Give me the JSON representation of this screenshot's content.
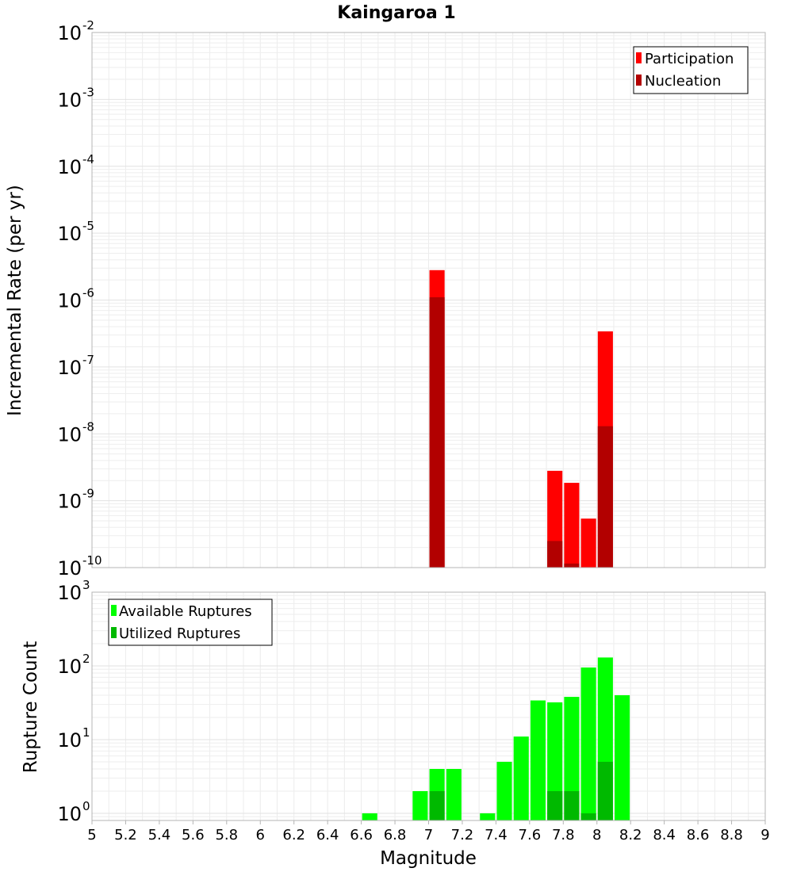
{
  "chart_data": [
    {
      "type": "bar",
      "title": "Kaingaroa 1",
      "xlabel": "",
      "ylabel": "Incremental Rate (per yr)",
      "xlim": [
        5,
        9
      ],
      "ylim": [
        1e-10,
        0.01
      ],
      "yscale": "log",
      "grid": true,
      "legend_position": "top-right",
      "y_ticks": [
        {
          "base": "10",
          "exp": "-10"
        },
        {
          "base": "10",
          "exp": "-9"
        },
        {
          "base": "10",
          "exp": "-8"
        },
        {
          "base": "10",
          "exp": "-7"
        },
        {
          "base": "10",
          "exp": "-6"
        },
        {
          "base": "10",
          "exp": "-5"
        },
        {
          "base": "10",
          "exp": "-4"
        },
        {
          "base": "10",
          "exp": "-3"
        },
        {
          "base": "10",
          "exp": "-2"
        }
      ],
      "series": [
        {
          "name": "Participation",
          "color": "#ff0000",
          "x": [
            7.05,
            7.75,
            7.85,
            7.95,
            8.05
          ],
          "values": [
            2.8e-06,
            2.8e-09,
            1.85e-09,
            5.4e-10,
            3.4e-07
          ]
        },
        {
          "name": "Nucleation",
          "color": "#b20000",
          "x": [
            7.05,
            7.75,
            7.85,
            8.05
          ],
          "values": [
            1.1e-06,
            2.5e-10,
            1.15e-10,
            1.3e-08
          ]
        }
      ]
    },
    {
      "type": "bar",
      "xlabel": "Magnitude",
      "ylabel": "Rupture Count",
      "xlim": [
        5,
        9
      ],
      "ylim": [
        0.8,
        1000
      ],
      "yscale": "log",
      "grid": true,
      "legend_position": "top-left",
      "x_ticks": [
        "5",
        "5.2",
        "5.4",
        "5.6",
        "5.8",
        "6",
        "6.2",
        "6.4",
        "6.6",
        "6.8",
        "7",
        "7.2",
        "7.4",
        "7.6",
        "7.8",
        "8",
        "8.2",
        "8.4",
        "8.6",
        "8.8",
        "9"
      ],
      "y_ticks": [
        {
          "base": "10",
          "exp": "0"
        },
        {
          "base": "10",
          "exp": "1"
        },
        {
          "base": "10",
          "exp": "2"
        },
        {
          "base": "10",
          "exp": "3"
        }
      ],
      "series": [
        {
          "name": "Available Ruptures",
          "color": "#00ff00",
          "x": [
            6.65,
            6.95,
            7.05,
            7.15,
            7.35,
            7.45,
            7.55,
            7.65,
            7.75,
            7.85,
            7.95,
            8.05,
            8.15
          ],
          "values": [
            1,
            2,
            4,
            4,
            1,
            5,
            11,
            34,
            32,
            38,
            95,
            130,
            40
          ]
        },
        {
          "name": "Utilized Ruptures",
          "color": "#00b900",
          "x": [
            7.05,
            7.75,
            7.85,
            7.95,
            8.05
          ],
          "values": [
            2,
            2,
            2,
            1,
            5
          ]
        }
      ]
    }
  ]
}
